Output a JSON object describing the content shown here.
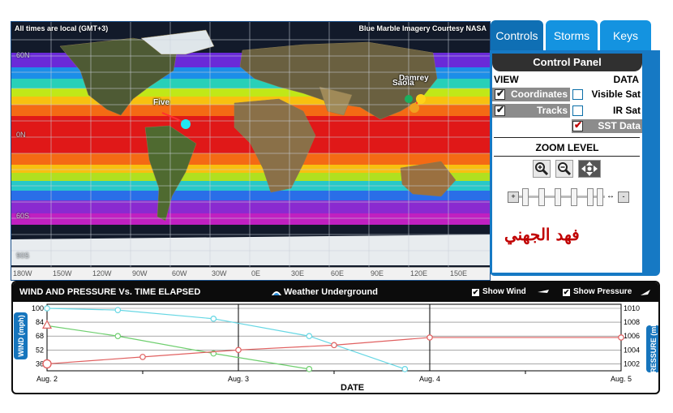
{
  "map": {
    "note_left": "All times are local (GMT+3)",
    "note_right": "Blue Marble Imagery Courtesy NASA",
    "lat_labels": [
      "60N",
      "0N",
      "60S",
      "90S"
    ],
    "lon_labels": [
      "180W",
      "150W",
      "120W",
      "90W",
      "60W",
      "30W",
      "0E",
      "30E",
      "60E",
      "90E",
      "120E",
      "150E"
    ],
    "storms": [
      {
        "name": "Five",
        "color": "#22e6f0"
      },
      {
        "name": "Damrey",
        "color": "#ffd21a"
      },
      {
        "name": "Saola",
        "color": "#f0a020"
      }
    ]
  },
  "tabs": [
    {
      "label": "Controls",
      "active": true
    },
    {
      "label": "Storms",
      "active": false
    },
    {
      "label": "Keys",
      "active": false
    }
  ],
  "control_panel": {
    "title": "Control Panel",
    "view_header": "VIEW",
    "data_header": "DATA",
    "view_options": [
      {
        "label": "Coordinates",
        "checked": true
      },
      {
        "label": "Tracks",
        "checked": true
      }
    ],
    "data_options": [
      {
        "label": "Visible Sat",
        "checked": false
      },
      {
        "label": "IR Sat",
        "checked": false
      },
      {
        "label": "SST Data",
        "checked": true
      }
    ],
    "zoom_header": "ZOOM LEVEL",
    "zoom_buttons": [
      "zoom-in-icon",
      "zoom-out-icon",
      "pan-arrows-icon"
    ],
    "slider_min_label": "+",
    "slider_max_label": "-",
    "signature": "فهد الجهني"
  },
  "chart_panel": {
    "title": "WIND AND PRESSURE Vs. TIME ELAPSED",
    "logo_text": "Weather Underground",
    "toggles": [
      {
        "label": "Show Wind",
        "checked": true
      },
      {
        "label": "Show Pressure",
        "checked": true
      }
    ],
    "left_label": "WIND (mph)",
    "right_label": "PRESSURE (mb)",
    "x_title": "DATE"
  },
  "chart_data": {
    "type": "line",
    "xlabel": "DATE",
    "ylabel": "WIND (mph)",
    "y2label": "PRESSURE (mb)",
    "x_ticks": [
      "Aug. 2",
      "Aug. 3",
      "Aug. 4",
      "Aug. 5"
    ],
    "ylim": [
      28,
      100
    ],
    "y_ticks": [
      100,
      84,
      68,
      52,
      36
    ],
    "y2lim": [
      1001,
      1010
    ],
    "y2_ticks": [
      1010,
      1008,
      1006,
      1004,
      1002
    ],
    "xlim": [
      2.0,
      5.0
    ],
    "series": [
      {
        "color": "#66d7e4",
        "axis": "left",
        "x": [
          1.9,
          2.37,
          2.87,
          3.37,
          3.87
        ],
        "y": [
          100,
          98,
          88,
          68,
          30
        ]
      },
      {
        "color": "#6fcf6f",
        "axis": "left",
        "x": [
          1.9,
          2.37,
          2.87,
          3.37
        ],
        "y": [
          80,
          68,
          48,
          30
        ]
      },
      {
        "color": "#e06060",
        "axis": "right",
        "x": [
          2.0,
          2.5,
          3.0,
          3.5,
          4.0,
          5.0
        ],
        "y": [
          1002,
          1003,
          1004,
          1004.7,
          1005.8,
          1005.8
        ]
      }
    ]
  }
}
